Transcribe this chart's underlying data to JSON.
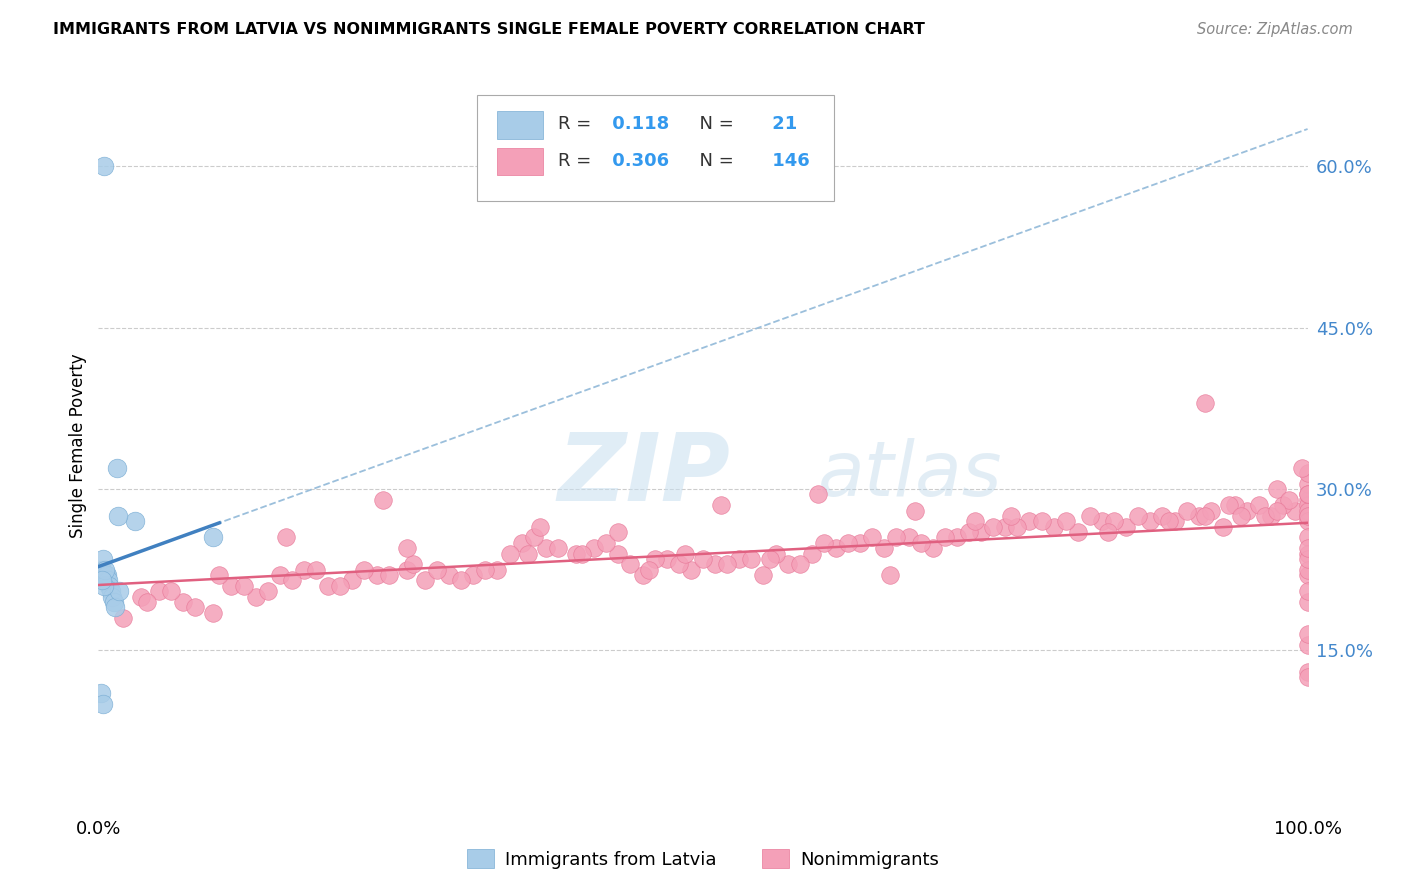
{
  "title": "IMMIGRANTS FROM LATVIA VS NONIMMIGRANTS SINGLE FEMALE POVERTY CORRELATION CHART",
  "source": "Source: ZipAtlas.com",
  "ylabel": "Single Female Poverty",
  "y_ticks_right": [
    15,
    30,
    45,
    60
  ],
  "y_tick_labels_right": [
    "15.0%",
    "30.0%",
    "45.0%",
    "60.0%"
  ],
  "xlim": [
    0,
    100
  ],
  "ylim": [
    0,
    68
  ],
  "blue_label": "Immigrants from Latvia",
  "pink_label": "Nonimmigrants",
  "blue_fill_color": "#a8cce8",
  "pink_fill_color": "#f4a0b8",
  "blue_edge_color": "#7aadd4",
  "pink_edge_color": "#e87898",
  "blue_line_color": "#4080c0",
  "pink_line_color": "#e06080",
  "dashed_color": "#90b8d8",
  "R_blue": 0.118,
  "N_blue": 21,
  "R_pink": 0.306,
  "N_pink": 146,
  "blue_x": [
    0.5,
    1.5,
    3.0,
    0.3,
    0.4,
    0.6,
    0.7,
    0.8,
    0.9,
    1.0,
    1.1,
    1.3,
    1.4,
    1.6,
    1.7,
    0.25,
    0.35,
    0.45,
    0.55,
    9.5,
    0.28
  ],
  "blue_y": [
    60.0,
    32.0,
    27.0,
    22.5,
    23.5,
    22.0,
    22.0,
    21.5,
    21.0,
    20.5,
    20.0,
    19.5,
    19.0,
    27.5,
    20.5,
    11.0,
    10.0,
    21.0,
    22.5,
    25.5,
    21.5
  ],
  "pink_x": [
    2.0,
    3.5,
    5.0,
    7.0,
    9.5,
    11.0,
    13.0,
    15.0,
    17.0,
    19.0,
    21.0,
    23.0,
    25.5,
    27.0,
    29.0,
    31.0,
    33.0,
    35.0,
    37.0,
    39.5,
    41.0,
    43.0,
    45.0,
    47.0,
    49.0,
    51.0,
    53.0,
    55.0,
    57.0,
    59.0,
    61.0,
    63.0,
    65.0,
    67.0,
    69.0,
    71.0,
    73.0,
    75.0,
    77.0,
    79.0,
    81.0,
    83.0,
    85.0,
    87.0,
    89.0,
    91.0,
    93.0,
    95.0,
    97.0,
    99.0,
    4.0,
    6.0,
    8.0,
    10.0,
    12.0,
    14.0,
    16.0,
    18.0,
    20.0,
    22.0,
    24.0,
    26.0,
    28.0,
    30.0,
    32.0,
    34.0,
    36.0,
    38.0,
    40.0,
    42.0,
    44.0,
    46.0,
    48.0,
    50.0,
    52.0,
    54.0,
    56.0,
    58.0,
    60.0,
    62.0,
    64.0,
    66.0,
    68.0,
    70.0,
    72.0,
    74.0,
    76.0,
    78.0,
    80.0,
    82.0,
    84.0,
    86.0,
    88.0,
    90.0,
    92.0,
    94.0,
    96.0,
    98.0,
    100.0,
    100.0,
    100.0,
    100.0,
    100.0,
    100.0,
    100.0,
    100.0,
    100.0,
    100.0,
    100.0,
    100.0,
    100.0,
    100.0,
    100.0,
    100.0,
    100.0,
    100.0,
    100.0,
    100.0,
    100.0,
    100.0,
    36.5,
    43.0,
    51.5,
    59.5,
    67.5,
    75.5,
    83.5,
    91.5,
    97.5,
    15.5,
    25.5,
    35.5,
    45.5,
    55.5,
    65.5,
    23.5,
    48.5,
    72.5,
    88.5,
    93.5,
    96.5,
    98.5,
    99.5,
    97.5,
    94.5,
    91.5
  ],
  "pink_y": [
    18.0,
    20.0,
    20.5,
    19.5,
    18.5,
    21.0,
    20.0,
    22.0,
    22.5,
    21.0,
    21.5,
    22.0,
    22.5,
    21.5,
    22.0,
    22.0,
    22.5,
    25.0,
    24.5,
    24.0,
    24.5,
    24.0,
    22.0,
    23.5,
    22.5,
    23.0,
    23.5,
    22.0,
    23.0,
    24.0,
    24.5,
    25.0,
    24.5,
    25.5,
    24.5,
    25.5,
    26.0,
    26.5,
    27.0,
    26.5,
    26.0,
    27.0,
    26.5,
    27.0,
    27.0,
    27.5,
    26.5,
    28.0,
    27.5,
    28.0,
    19.5,
    20.5,
    19.0,
    22.0,
    21.0,
    20.5,
    21.5,
    22.5,
    21.0,
    22.5,
    22.0,
    23.0,
    22.5,
    21.5,
    22.5,
    24.0,
    25.5,
    24.5,
    24.0,
    25.0,
    23.0,
    23.5,
    23.0,
    23.5,
    23.0,
    23.5,
    24.0,
    23.0,
    25.0,
    25.0,
    25.5,
    25.5,
    25.0,
    25.5,
    26.0,
    26.5,
    26.5,
    27.0,
    27.0,
    27.5,
    27.0,
    27.5,
    27.5,
    28.0,
    28.0,
    28.5,
    28.5,
    28.5,
    29.0,
    27.5,
    28.5,
    30.5,
    28.0,
    31.5,
    29.5,
    27.0,
    29.5,
    27.5,
    25.5,
    13.0,
    15.5,
    19.5,
    12.5,
    22.0,
    16.5,
    24.0,
    20.5,
    22.5,
    23.5,
    24.5,
    26.5,
    26.0,
    28.5,
    29.5,
    28.0,
    27.5,
    26.0,
    27.5,
    30.0,
    25.5,
    24.5,
    24.0,
    22.5,
    23.5,
    22.0,
    29.0,
    24.0,
    27.0,
    27.0,
    28.5,
    27.5,
    29.0,
    32.0,
    28.0,
    27.5,
    38.0
  ]
}
